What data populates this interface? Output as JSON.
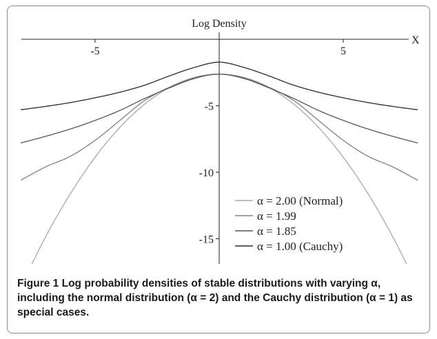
{
  "chart_data": {
    "type": "line",
    "title": "Log Density",
    "xlabel": "X",
    "ylabel": "",
    "xlim": [
      -8,
      8
    ],
    "ylim": [
      -17.5,
      0
    ],
    "x_ticks": [
      -5,
      5
    ],
    "y_ticks": [
      -5,
      -10,
      -15
    ],
    "grid": false,
    "legend_position": "bottom-right",
    "series": [
      {
        "name": "α = 2.00 (Normal)",
        "color": "#a8a8a8",
        "x": [
          -8,
          -7,
          -6,
          -5,
          -4,
          -3,
          -2,
          -1,
          0,
          1,
          2,
          3,
          4,
          5,
          6,
          7,
          8
        ],
        "y": [
          -18.62,
          -14.87,
          -11.62,
          -8.87,
          -6.62,
          -4.87,
          -3.62,
          -2.87,
          -2.62,
          -2.87,
          -3.62,
          -4.87,
          -6.62,
          -8.87,
          -11.62,
          -14.87,
          -18.62
        ]
      },
      {
        "name": "α = 1.99",
        "color": "#808080",
        "x": [
          -8,
          -7,
          -6,
          -5,
          -4,
          -3,
          -2,
          -1,
          0,
          1,
          2,
          3,
          4,
          5,
          6,
          7,
          8
        ],
        "y": [
          -10.6,
          -9.6,
          -8.8,
          -7.6,
          -6.1,
          -4.6,
          -3.6,
          -2.9,
          -2.62,
          -2.9,
          -3.6,
          -4.6,
          -6.1,
          -7.6,
          -8.8,
          -9.6,
          -10.6
        ]
      },
      {
        "name": "α = 1.85",
        "color": "#555555",
        "x": [
          -8,
          -7,
          -6,
          -5,
          -4,
          -3,
          -2,
          -1,
          0,
          1,
          2,
          3,
          4,
          5,
          6,
          7,
          8
        ],
        "y": [
          -7.8,
          -7.3,
          -6.75,
          -6.1,
          -5.35,
          -4.45,
          -3.65,
          -2.95,
          -2.62,
          -2.95,
          -3.65,
          -4.45,
          -5.35,
          -6.1,
          -6.75,
          -7.3,
          -7.8
        ]
      },
      {
        "name": "α = 1.00 (Cauchy)",
        "color": "#2a2a2a",
        "x": [
          -8,
          -7,
          -6,
          -5,
          -4,
          -3,
          -2,
          -1,
          0,
          1,
          2,
          3,
          4,
          5,
          6,
          7,
          8
        ],
        "y": [
          -5.3,
          -5.05,
          -4.76,
          -4.4,
          -3.98,
          -3.45,
          -2.75,
          -2.12,
          -1.72,
          -2.12,
          -2.75,
          -3.45,
          -3.98,
          -4.4,
          -4.76,
          -5.05,
          -5.3
        ]
      }
    ]
  },
  "caption": {
    "label": "Figure 1",
    "text": "Log probability densities of stable distributions with varying α, including the normal distribution (α = 2) and the Cauchy distribution (α = 1) as special cases."
  }
}
